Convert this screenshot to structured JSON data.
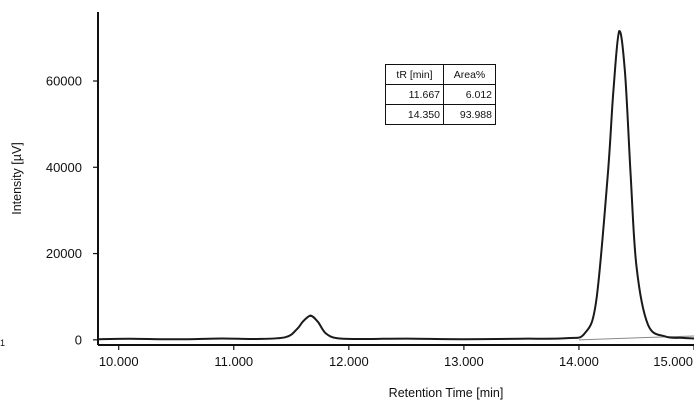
{
  "chart_data": {
    "type": "line",
    "title": "",
    "xlabel": "Retention Time [min]",
    "ylabel": "Intensity [µV]",
    "xlim": [
      9.82,
      15.0
    ],
    "ylim": [
      -1200,
      76000
    ],
    "x_ticks": [
      10.0,
      11.0,
      12.0,
      13.0,
      14.0,
      15.0
    ],
    "x_tick_labels": [
      "10.000",
      "11.000",
      "12.000",
      "13.000",
      "14.000",
      "15.000"
    ],
    "y_ticks": [
      0,
      20000,
      40000,
      60000
    ],
    "y_tick_labels": [
      "0",
      "20000",
      "40000",
      "60000"
    ],
    "grid": false,
    "series": [
      {
        "x": [
          9.82,
          10.1,
          10.5,
          10.9,
          11.2,
          11.45,
          11.55,
          11.6,
          11.667,
          11.73,
          11.8,
          11.9,
          12.1,
          12.5,
          13.0,
          13.5,
          13.9,
          14.05,
          14.15,
          14.25,
          14.3,
          14.35,
          14.4,
          14.45,
          14.5,
          14.6,
          14.75,
          14.9,
          15.0
        ],
        "y": [
          150,
          250,
          120,
          300,
          180,
          600,
          2500,
          4200,
          5600,
          4200,
          1500,
          350,
          200,
          280,
          150,
          250,
          400,
          1500,
          9000,
          38000,
          58000,
          71500,
          62000,
          38000,
          17000,
          3500,
          800,
          450,
          300
        ]
      }
    ],
    "baseline": {
      "x": [
        14.0,
        15.0
      ],
      "y": [
        0,
        900
      ]
    },
    "peaks": [
      {
        "x": 11.667,
        "y": 5600
      },
      {
        "x": 14.35,
        "y": 71500
      }
    ]
  },
  "peak_table": {
    "headers": [
      "tR [min]",
      "Area%"
    ],
    "rows": [
      [
        "11.667",
        "6.012"
      ],
      [
        "14.350",
        "93.988"
      ]
    ]
  },
  "stray_mark": "1"
}
